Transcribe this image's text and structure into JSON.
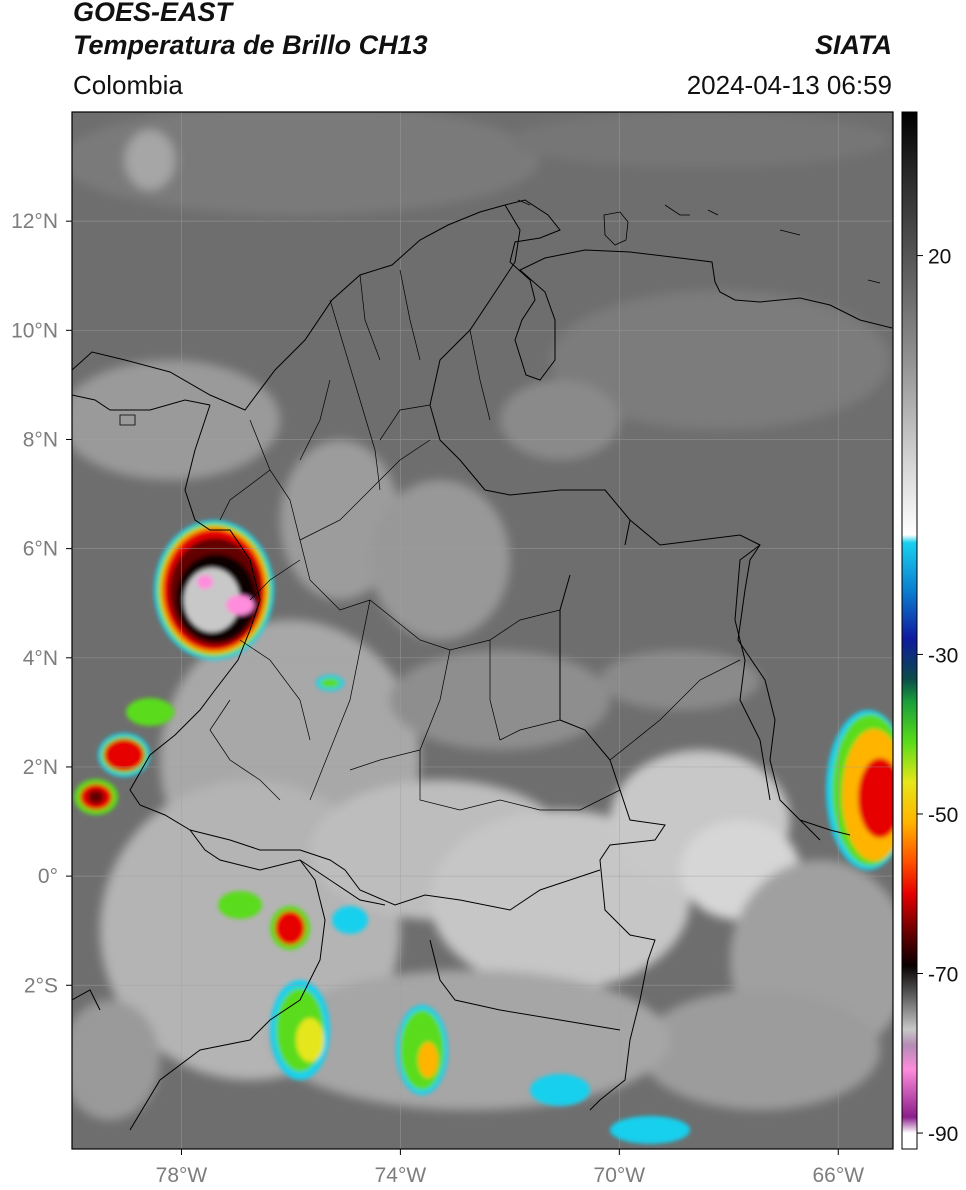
{
  "header": {
    "satellite": "GOES-EAST",
    "product": "Temperatura de Brillo CH13",
    "agency": "SIATA",
    "region": "Colombia",
    "datetime": "2024-04-13 06:59"
  },
  "map": {
    "lon_range": [
      -80,
      -65
    ],
    "lat_range": [
      -5,
      14
    ],
    "lon_ticks": [
      {
        "v": -78,
        "label": "78°W"
      },
      {
        "v": -74,
        "label": "74°W"
      },
      {
        "v": -70,
        "label": "70°W"
      },
      {
        "v": -66,
        "label": "66°W"
      }
    ],
    "lat_ticks": [
      {
        "v": 12,
        "label": "12°N"
      },
      {
        "v": 10,
        "label": "10°N"
      },
      {
        "v": 8,
        "label": "8°N"
      },
      {
        "v": 6,
        "label": "6°N"
      },
      {
        "v": 4,
        "label": "4°N"
      },
      {
        "v": 2,
        "label": "2°N"
      },
      {
        "v": 0,
        "label": "0°"
      },
      {
        "v": -2,
        "label": "2°S"
      }
    ],
    "gridlines": true
  },
  "colorbar": {
    "range": [
      -92,
      38
    ],
    "ticks": [
      {
        "v": 20,
        "label": "20"
      },
      {
        "v": -30,
        "label": "-30"
      },
      {
        "v": -50,
        "label": "-50"
      },
      {
        "v": -70,
        "label": "-70"
      },
      {
        "v": -90,
        "label": "-90"
      }
    ],
    "stops": [
      {
        "v": 38,
        "c": "#000000"
      },
      {
        "v": 30,
        "c": "#2a2a2a"
      },
      {
        "v": 20,
        "c": "#555555"
      },
      {
        "v": 8,
        "c": "#8c8c8c"
      },
      {
        "v": -5,
        "c": "#d0d0d0"
      },
      {
        "v": -15,
        "c": "#ffffff"
      },
      {
        "v": -16,
        "c": "#19d0ee"
      },
      {
        "v": -22,
        "c": "#0a7fd0"
      },
      {
        "v": -28,
        "c": "#101aa0"
      },
      {
        "v": -33,
        "c": "#0a4a4a"
      },
      {
        "v": -36,
        "c": "#1aa03a"
      },
      {
        "v": -41,
        "c": "#5adc1a"
      },
      {
        "v": -46,
        "c": "#e6e61a"
      },
      {
        "v": -51,
        "c": "#ffb400"
      },
      {
        "v": -56,
        "c": "#ff5000"
      },
      {
        "v": -60,
        "c": "#e60000"
      },
      {
        "v": -65,
        "c": "#640000"
      },
      {
        "v": -69,
        "c": "#0a0000"
      },
      {
        "v": -72,
        "c": "#4a4a4a"
      },
      {
        "v": -77,
        "c": "#c8c8c8"
      },
      {
        "v": -79,
        "c": "#b48cb4"
      },
      {
        "v": -82,
        "c": "#ff8cdc"
      },
      {
        "v": -88,
        "c": "#8c1e8c"
      },
      {
        "v": -90,
        "c": "#ffffff"
      },
      {
        "v": -92,
        "c": "#ffffff"
      }
    ]
  },
  "colors": {
    "background_cloud_free": "#6e6e6e",
    "axis_tick_label": "#7d7d7d",
    "border": "#000000"
  }
}
